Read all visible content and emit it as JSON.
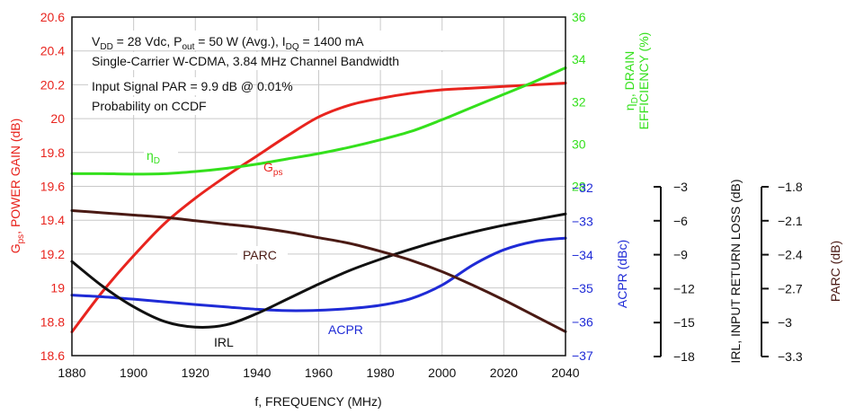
{
  "chart_data": {
    "type": "line",
    "x_axis": {
      "label": "f, FREQUENCY (MHz)",
      "range": [
        1880,
        2040
      ],
      "ticks": [
        "1880",
        "1900",
        "1920",
        "1940",
        "1960",
        "1980",
        "2000",
        "2020",
        "2040"
      ]
    },
    "annotation_lines": [
      {
        "main": "V",
        "sub": "DD",
        "rest": " = 28 Vdc, P",
        "sub2": "out",
        "rest2": " = 50 W (Avg.), I",
        "sub3": "DQ",
        "rest3": " = 1400 mA"
      },
      {
        "main": "Single-Carrier W-CDMA, 3.84 MHz Channel Bandwidth"
      },
      {
        "main": "Input Signal PAR = 9.9 dB @ 0.01%"
      },
      {
        "main": "Probability on CCDF"
      }
    ],
    "axes": {
      "gps": {
        "label_main": "G",
        "label_sub": "ps",
        "label_rest": ", POWER GAIN (dB)",
        "range": [
          18.6,
          20.6
        ],
        "color": "#e8241e",
        "ticks": [
          "18.6",
          "18.8",
          "19",
          "19.2",
          "19.4",
          "19.6",
          "19.8",
          "20",
          "20.2",
          "20.4",
          "20.6"
        ]
      },
      "eff": {
        "label_main": "η",
        "label_sub": "D",
        "label_rest": ", DRAIN",
        "label_line2": "EFFICIENCY (%)",
        "range": [
          20,
          36
        ],
        "color": "#34e01c",
        "ticks": [
          "28",
          "30",
          "32",
          "34",
          "36"
        ]
      },
      "acpr": {
        "label": "ACPR (dBc)",
        "range": [
          -37,
          -32
        ],
        "color": "#1f2bd6",
        "ticks": [
          "-32",
          "-33",
          "-34",
          "-35",
          "-36",
          "-37"
        ]
      },
      "irl": {
        "label": "IRL, INPUT RETURN LOSS (dB)",
        "range": [
          -18,
          -3
        ],
        "ticks": [
          "-3",
          "-6",
          "-9",
          "-12",
          "-15",
          "-18"
        ]
      },
      "parc": {
        "label": "PARC (dB)",
        "range": [
          -3.3,
          -1.8
        ],
        "ticks": [
          "-1.8",
          "-2.1",
          "-2.4",
          "-2.7",
          "-3",
          "-3.3"
        ]
      }
    },
    "series": [
      {
        "name_main": "G",
        "name_sub": "ps",
        "axis": "gps",
        "color": "#e8241e",
        "x": [
          1880,
          1890,
          1900,
          1910,
          1920,
          1930,
          1940,
          1950,
          1960,
          1970,
          1980,
          1990,
          2000,
          2010,
          2020,
          2030,
          2040
        ],
        "y": [
          18.74,
          18.98,
          19.19,
          19.38,
          19.53,
          19.66,
          19.78,
          19.9,
          20.01,
          20.08,
          20.12,
          20.15,
          20.17,
          20.18,
          20.19,
          20.2,
          20.21
        ]
      },
      {
        "name_main": "η",
        "name_sub": "D",
        "axis": "eff",
        "color": "#34e01c",
        "x": [
          1880,
          1890,
          1900,
          1910,
          1920,
          1930,
          1940,
          1950,
          1960,
          1970,
          1980,
          1990,
          2000,
          2010,
          2020,
          2030,
          2040
        ],
        "y": [
          28.6,
          28.6,
          28.58,
          28.6,
          28.7,
          28.85,
          29.05,
          29.3,
          29.55,
          29.85,
          30.2,
          30.6,
          31.15,
          31.75,
          32.35,
          32.95,
          33.6
        ]
      },
      {
        "name": "ACPR",
        "axis": "acpr",
        "color": "#1f2bd6",
        "x": [
          1880,
          1890,
          1900,
          1910,
          1920,
          1930,
          1940,
          1950,
          1960,
          1970,
          1980,
          1990,
          2000,
          2010,
          2020,
          2030,
          2040
        ],
        "y": [
          -35.2,
          -35.25,
          -35.32,
          -35.4,
          -35.48,
          -35.55,
          -35.62,
          -35.66,
          -35.65,
          -35.6,
          -35.5,
          -35.3,
          -34.9,
          -34.3,
          -33.85,
          -33.6,
          -33.5
        ]
      },
      {
        "name": "IRL",
        "axis": "irl",
        "color": "#111111",
        "x": [
          1880,
          1890,
          1900,
          1910,
          1920,
          1930,
          1940,
          1950,
          1960,
          1970,
          1980,
          1990,
          2000,
          2010,
          2020,
          2030,
          2040
        ],
        "y": [
          -9.6,
          -11.8,
          -13.6,
          -14.9,
          -15.4,
          -15.2,
          -14.2,
          -12.9,
          -11.6,
          -10.4,
          -9.4,
          -8.5,
          -7.7,
          -7.0,
          -6.4,
          -5.9,
          -5.4
        ]
      },
      {
        "name": "PARC",
        "axis": "parc",
        "color": "#4a1a14",
        "x": [
          1880,
          1890,
          1900,
          1910,
          1920,
          1930,
          1940,
          1950,
          1960,
          1970,
          1980,
          1990,
          2000,
          2010,
          2020,
          2030,
          2040
        ],
        "y": [
          -2.01,
          -2.03,
          -2.05,
          -2.07,
          -2.1,
          -2.13,
          -2.16,
          -2.2,
          -2.25,
          -2.3,
          -2.37,
          -2.45,
          -2.55,
          -2.67,
          -2.8,
          -2.94,
          -3.08
        ]
      }
    ]
  }
}
